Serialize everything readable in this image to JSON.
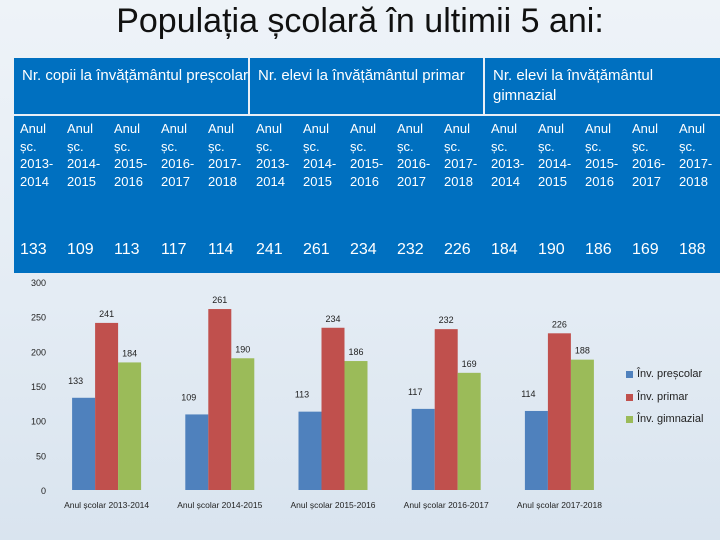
{
  "title": "Populația școlară în ultimii 5 ani:",
  "table": {
    "groups": [
      {
        "header": "Nr. copii la învățământul preșcolar",
        "years": [
          "Anul șc. 2013-2014",
          "Anul șc. 2014-2015",
          "Anul șc. 2015-2016",
          "Anul șc. 2016-2017",
          "Anul șc. 2017-2018"
        ],
        "values": [
          "133",
          "109",
          "113",
          "117",
          "114"
        ]
      },
      {
        "header": "Nr. elevi la învățământul primar",
        "years": [
          "Anul șc. 2013-2014",
          "Anul șc. 2014-2015",
          "Anul șc. 2015-2016",
          "Anul șc. 2016-2017",
          "Anul șc. 2017-2018"
        ],
        "values": [
          "241",
          "261",
          "234",
          "232",
          "226"
        ]
      },
      {
        "header": "Nr. elevi la învățământul gimnazial",
        "years": [
          "Anul șc. 2013-2014",
          "Anul șc. 2014-2015",
          "Anul șc. 2015-2016",
          "Anul șc. 2016-2017",
          "Anul șc. 2017-2018"
        ],
        "values": [
          "184",
          "190",
          "186",
          "169",
          "188"
        ]
      }
    ]
  },
  "chart_data": {
    "type": "bar",
    "categories": [
      "Anul școlar 2013-2014",
      "Anul școlar 2014-2015",
      "Anul școlar 2015-2016",
      "Anul școlar 2016-2017",
      "Anul școlar 2017-2018"
    ],
    "series": [
      {
        "name": "Înv. preșcolar",
        "values": [
          133,
          109,
          113,
          117,
          114
        ],
        "color": "#4f81bd"
      },
      {
        "name": "Înv. primar",
        "values": [
          241,
          261,
          234,
          232,
          226
        ],
        "color": "#c0504d"
      },
      {
        "name": "Înv. gimnazial",
        "values": [
          184,
          190,
          186,
          169,
          188
        ],
        "color": "#9bbb59"
      }
    ],
    "yticks": [
      0,
      50,
      100,
      150,
      200,
      250,
      300
    ],
    "ylim": [
      0,
      300
    ],
    "legend_position": "right",
    "grid": false
  }
}
